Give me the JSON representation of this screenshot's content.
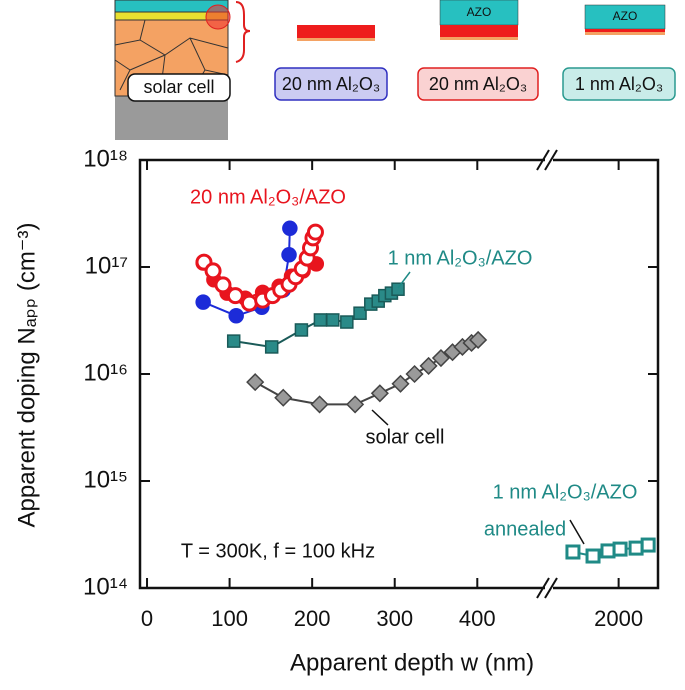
{
  "schematic": {
    "labels": [
      "solar cell",
      "20 nm Al₂O₃",
      "20 nm Al₂O₃",
      "1 nm Al₂O₃"
    ],
    "layer_text": [
      "AZO",
      "AZO"
    ]
  },
  "chart_data": {
    "type": "line",
    "ylog": true,
    "xlabel": "Apparent depth w (nm)",
    "ylabel": "Apparent doping Nₐₚₚ (cm⁻³)",
    "xlim": [
      -8.5,
      482
    ],
    "xticks": [
      0,
      100,
      200,
      300,
      400
    ],
    "x2lim": [
      1500,
      2300
    ],
    "x2ticks": [
      2000
    ],
    "ylim": [
      100000000000000.0,
      1e+18
    ],
    "yticks": [
      {
        "value": 100000000000000.0,
        "label": "10¹⁴"
      },
      {
        "value": 1000000000000000.0,
        "label": "10¹⁵"
      },
      {
        "value": 1e+16,
        "label": "10¹⁶"
      },
      {
        "value": 1e+17,
        "label": "10¹⁷"
      },
      {
        "value": 1e+18,
        "label": "10¹⁸"
      }
    ],
    "series": [
      {
        "color": "#9a9a9a",
        "marker": "diamond",
        "x": [
          131,
          165,
          209,
          252,
          282,
          307,
          324,
          341,
          356,
          370,
          382,
          393,
          401
        ],
        "values": [
          8400000000000000.0,
          6000000000000000.0,
          5200000000000000.0,
          5200000000000000.0,
          6600000000000000.0,
          8100000000000000.0,
          1e+16,
          1.19e+16,
          1.41e+16,
          1.6e+16,
          1.79e+16,
          1.95e+16,
          2.08e+16
        ]
      },
      {
        "color": "#2a8a88",
        "marker": "square",
        "x": [
          105,
          151,
          187,
          210,
          225,
          242,
          258,
          271,
          280,
          288,
          296,
          304
        ],
        "values": [
          2.03e+16,
          1.79e+16,
          2.58e+16,
          3.2e+16,
          3.2e+16,
          3.06e+16,
          3.7e+16,
          4.5e+16,
          4.8e+16,
          5.4e+16,
          5.7e+16,
          6.2e+16
        ]
      },
      {
        "color": "#1c2bd8",
        "marker": "circle",
        "x": [
          68,
          108,
          139,
          165,
          172,
          173
        ],
        "values": [
          4.7e+16,
          3.5e+16,
          4.2e+16,
          6.1e+16,
          1.3e+17,
          2.3e+17
        ]
      },
      {
        "color": "#e8141e",
        "marker": "circle",
        "x": [
          68,
          81,
          97,
          119,
          140,
          160,
          175,
          189,
          205
        ],
        "values": [
          1.09e+17,
          7.6e+16,
          5.7e+16,
          5.1e+16,
          5.8e+16,
          6.6e+16,
          8.2e+16,
          9.2e+16,
          1.07e+17
        ]
      },
      {
        "color": "#e8141e",
        "marker": "circle",
        "fill": "#ffffff",
        "x": [
          69,
          80,
          92,
          107,
          124,
          140,
          152,
          162,
          172,
          180,
          188,
          194,
          198,
          201,
          204
        ],
        "values": [
          1.11e+17,
          9.2e+16,
          6.8e+16,
          5.4e+16,
          4.6e+16,
          4.9e+16,
          5.4e+16,
          6.1e+16,
          6.9e+16,
          8.1e+16,
          9.6e+16,
          1.21e+17,
          1.51e+17,
          1.87e+17,
          2.12e+17
        ]
      },
      {
        "color": "#1f8a86",
        "marker": "square",
        "fill": "#ffffff",
        "axis": "x2",
        "x": [
          1652,
          1805,
          1919,
          2011,
          2133,
          2225
        ],
        "values": [
          217000000000000.0,
          199000000000000.0,
          222000000000000.0,
          231000000000000.0,
          236000000000000.0,
          252000000000000.0
        ]
      }
    ],
    "annotations": [
      "20 nm Al₂O₃/AZO",
      "1 nm Al₂O₃/AZO",
      "solar cell",
      "1 nm Al₂O₃/AZO",
      "annealed",
      "T = 300K, f = 100 kHz"
    ]
  }
}
